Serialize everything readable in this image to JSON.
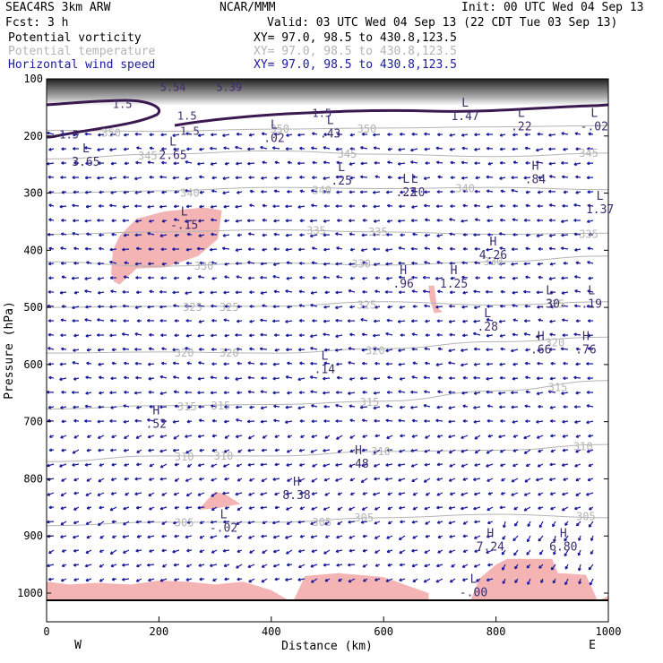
{
  "header": {
    "model": "SEAC4RS  3km ARW",
    "forecast": "Fcst:   3 h",
    "org": "NCAR/MMM",
    "init": "Init: 00 UTC Wed 04 Sep 13",
    "valid": "Valid: 03 UTC Wed 04 Sep 13 (22 CDT Tue 03 Sep 13)",
    "fields": [
      {
        "name": "Potential vorticity",
        "xy": "XY=  97.0, 98.5 to 430.8,123.5",
        "color": "#000000"
      },
      {
        "name": "Potential temperature",
        "xy": "XY=  97.0, 98.5 to 430.8,123.5",
        "color": "#b4b4b4"
      },
      {
        "name": "Horizontal wind speed",
        "xy": "XY=  97.0, 98.5 to 430.8,123.5",
        "color": "#1a1a9e"
      }
    ]
  },
  "colors": {
    "pv_fill": "#f4b4b4",
    "theta": "#b4b4b4",
    "label": "#3c2d6e",
    "wind": "#1a1a9e",
    "pv_contour": "#3a1850"
  },
  "chart_data": {
    "type": "cross-section",
    "xlabel": "Distance (km)",
    "ylabel": "Pressure (hPa)",
    "xlim": [
      0,
      1000
    ],
    "ylim": [
      1050,
      100
    ],
    "x_ticks": [
      "0",
      "200",
      "400",
      "600",
      "800",
      "1000"
    ],
    "y_ticks": [
      "100",
      "200",
      "300",
      "400",
      "500",
      "600",
      "700",
      "800",
      "900",
      "1000"
    ],
    "x_end_labels": {
      "left": "W",
      "right": "E"
    },
    "theta_isentropes": [
      {
        "label": "350",
        "points": [
          [
            0,
            190
          ],
          [
            200,
            192
          ],
          [
            400,
            188
          ],
          [
            600,
            186
          ],
          [
            800,
            184
          ],
          [
            1000,
            182
          ]
        ]
      },
      {
        "label": "345",
        "points": [
          [
            0,
            240
          ],
          [
            200,
            232
          ],
          [
            400,
            226
          ],
          [
            600,
            232
          ],
          [
            800,
            236
          ],
          [
            1000,
            230
          ]
        ]
      },
      {
        "label": "340",
        "points": [
          [
            0,
            300
          ],
          [
            200,
            296
          ],
          [
            400,
            290
          ],
          [
            600,
            292
          ],
          [
            800,
            290
          ],
          [
            1000,
            294
          ]
        ]
      },
      {
        "label": "335",
        "points": [
          [
            0,
            372
          ],
          [
            200,
            368
          ],
          [
            400,
            364
          ],
          [
            600,
            368
          ],
          [
            800,
            372
          ],
          [
            1000,
            370
          ]
        ]
      },
      {
        "label": "330",
        "points": [
          [
            0,
            420
          ],
          [
            200,
            428
          ],
          [
            400,
            422
          ],
          [
            600,
            426
          ],
          [
            800,
            420
          ],
          [
            1000,
            410
          ]
        ]
      },
      {
        "label": "325",
        "points": [
          [
            0,
            500
          ],
          [
            200,
            498
          ],
          [
            400,
            498
          ],
          [
            600,
            490
          ],
          [
            800,
            496
          ],
          [
            1000,
            490
          ]
        ]
      },
      {
        "label": "320",
        "points": [
          [
            0,
            580
          ],
          [
            200,
            578
          ],
          [
            400,
            580
          ],
          [
            600,
            572
          ],
          [
            800,
            560
          ],
          [
            1000,
            552
          ]
        ]
      },
      {
        "label": "315",
        "points": [
          [
            0,
            678
          ],
          [
            200,
            672
          ],
          [
            400,
            670
          ],
          [
            600,
            664
          ],
          [
            800,
            646
          ],
          [
            1000,
            628
          ]
        ]
      },
      {
        "label": "310",
        "points": [
          [
            0,
            770
          ],
          [
            200,
            760
          ],
          [
            400,
            760
          ],
          [
            600,
            752
          ],
          [
            800,
            750
          ],
          [
            1000,
            740
          ]
        ]
      },
      {
        "label": "305",
        "points": [
          [
            0,
            882
          ],
          [
            200,
            876
          ],
          [
            400,
            876
          ],
          [
            600,
            868
          ],
          [
            800,
            862
          ],
          [
            1000,
            868
          ]
        ]
      }
    ],
    "theta_labels": [
      {
        "text": "350",
        "x": 115,
        "p": 195
      },
      {
        "text": "350",
        "x": 415,
        "p": 188
      },
      {
        "text": "350",
        "x": 570,
        "p": 188
      },
      {
        "text": "345",
        "x": 180,
        "p": 235
      },
      {
        "text": "345",
        "x": 535,
        "p": 232
      },
      {
        "text": "345",
        "x": 965,
        "p": 230
      },
      {
        "text": "340",
        "x": 255,
        "p": 300
      },
      {
        "text": "340",
        "x": 490,
        "p": 295
      },
      {
        "text": "340",
        "x": 745,
        "p": 292
      },
      {
        "text": "335",
        "x": 480,
        "p": 366
      },
      {
        "text": "335",
        "x": 590,
        "p": 368
      },
      {
        "text": "335",
        "x": 965,
        "p": 372
      },
      {
        "text": "330",
        "x": 280,
        "p": 428
      },
      {
        "text": "330",
        "x": 560,
        "p": 424
      },
      {
        "text": "330",
        "x": 795,
        "p": 420
      },
      {
        "text": "325",
        "x": 260,
        "p": 500
      },
      {
        "text": "325",
        "x": 325,
        "p": 500
      },
      {
        "text": "325",
        "x": 570,
        "p": 496
      },
      {
        "text": "325",
        "x": 905,
        "p": 494
      },
      {
        "text": "320",
        "x": 245,
        "p": 580
      },
      {
        "text": "320",
        "x": 325,
        "p": 580
      },
      {
        "text": "320",
        "x": 585,
        "p": 576
      },
      {
        "text": "320",
        "x": 905,
        "p": 562
      },
      {
        "text": "315",
        "x": 250,
        "p": 674
      },
      {
        "text": "315",
        "x": 310,
        "p": 672
      },
      {
        "text": "315",
        "x": 575,
        "p": 666
      },
      {
        "text": "315",
        "x": 910,
        "p": 640
      },
      {
        "text": "310",
        "x": 245,
        "p": 762
      },
      {
        "text": "310",
        "x": 315,
        "p": 760
      },
      {
        "text": "310",
        "x": 595,
        "p": 752
      },
      {
        "text": "310",
        "x": 955,
        "p": 744
      },
      {
        "text": "305",
        "x": 245,
        "p": 877
      },
      {
        "text": "305",
        "x": 490,
        "p": 876
      },
      {
        "text": "305",
        "x": 565,
        "p": 868
      },
      {
        "text": "305",
        "x": 960,
        "p": 866
      }
    ],
    "pv_labels": [
      {
        "text": "5.54",
        "x": 225,
        "p": 115
      },
      {
        "text": "5.39",
        "x": 325,
        "p": 115
      },
      {
        "text": "1.5",
        "x": 135,
        "p": 145
      },
      {
        "text": "1.5",
        "x": 250,
        "p": 165
      },
      {
        "text": "1.5",
        "x": 490,
        "p": 160
      },
      {
        "text": "1.5",
        "x": 40,
        "p": 198
      },
      {
        "text": "1.5",
        "x": 255,
        "p": 192
      }
    ],
    "extrema": [
      {
        "kind": "L",
        "value": "3.65",
        "x": 70,
        "p": 232
      },
      {
        "kind": "L",
        "value": "2.65",
        "x": 225,
        "p": 220
      },
      {
        "kind": "L",
        "value": ".02",
        "x": 405,
        "p": 190
      },
      {
        "kind": "L",
        "value": ".43",
        "x": 505,
        "p": 182
      },
      {
        "kind": "L",
        "value": "1.47",
        "x": 745,
        "p": 152
      },
      {
        "kind": "L",
        "value": ".22",
        "x": 845,
        "p": 170
      },
      {
        "kind": "L",
        "value": "-.02",
        "x": 975,
        "p": 170
      },
      {
        "kind": "L",
        "value": ".25",
        "x": 525,
        "p": 265
      },
      {
        "kind": "L",
        "value": ".22",
        "x": 640,
        "p": 285
      },
      {
        "kind": "L",
        "value": ".10",
        "x": 655,
        "p": 285
      },
      {
        "kind": "H",
        "value": ".84",
        "x": 870,
        "p": 262
      },
      {
        "kind": "L",
        "value": "1.37",
        "x": 985,
        "p": 315
      },
      {
        "kind": "L",
        "value": "-.15",
        "x": 245,
        "p": 342
      },
      {
        "kind": "H",
        "value": "4.26",
        "x": 795,
        "p": 395
      },
      {
        "kind": "H",
        "value": ".96",
        "x": 635,
        "p": 445
      },
      {
        "kind": "H",
        "value": "1.25",
        "x": 725,
        "p": 445
      },
      {
        "kind": "L",
        "value": ".30",
        "x": 895,
        "p": 480
      },
      {
        "kind": "L",
        "value": ".19",
        "x": 970,
        "p": 480
      },
      {
        "kind": "L",
        "value": ".28",
        "x": 785,
        "p": 520
      },
      {
        "kind": "H",
        "value": ".66",
        "x": 880,
        "p": 560
      },
      {
        "kind": "H",
        "value": ".76",
        "x": 960,
        "p": 560
      },
      {
        "kind": "L",
        "value": ".14",
        "x": 495,
        "p": 595
      },
      {
        "kind": "H",
        "value": ".52",
        "x": 195,
        "p": 690
      },
      {
        "kind": "H",
        "value": ".48",
        "x": 555,
        "p": 760
      },
      {
        "kind": "H",
        "value": "8.38",
        "x": 445,
        "p": 815
      },
      {
        "kind": "L",
        "value": "-.02",
        "x": 315,
        "p": 872
      },
      {
        "kind": "H",
        "value": "7.24",
        "x": 790,
        "p": 905
      },
      {
        "kind": "H",
        "value": "6.80",
        "x": 920,
        "p": 905
      },
      {
        "kind": "L",
        "value": "-.00",
        "x": 760,
        "p": 985
      }
    ],
    "negative_pv_regions": [
      [
        [
          115,
          440
        ],
        [
          118,
          400
        ],
        [
          130,
          375
        ],
        [
          160,
          345
        ],
        [
          210,
          332
        ],
        [
          280,
          325
        ],
        [
          312,
          330
        ],
        [
          305,
          380
        ],
        [
          270,
          410
        ],
        [
          210,
          430
        ],
        [
          160,
          432
        ],
        [
          130,
          460
        ],
        [
          120,
          455
        ]
      ],
      [
        [
          680,
          462
        ],
        [
          690,
          462
        ],
        [
          695,
          500
        ],
        [
          705,
          508
        ],
        [
          690,
          510
        ],
        [
          682,
          485
        ]
      ],
      [
        [
          300,
          822
        ],
        [
          320,
          828
        ],
        [
          345,
          844
        ],
        [
          300,
          852
        ],
        [
          270,
          854
        ]
      ],
      [
        [
          0,
          980
        ],
        [
          40,
          985
        ],
        [
          90,
          982
        ],
        [
          150,
          985
        ],
        [
          200,
          978
        ],
        [
          250,
          980
        ],
        [
          300,
          985
        ],
        [
          350,
          980
        ],
        [
          400,
          995
        ],
        [
          430,
          1012
        ],
        [
          0,
          1012
        ]
      ],
      [
        [
          440,
          1012
        ],
        [
          460,
          970
        ],
        [
          520,
          965
        ],
        [
          600,
          972
        ],
        [
          680,
          1000
        ],
        [
          680,
          1012
        ]
      ],
      [
        [
          755,
          1012
        ],
        [
          770,
          975
        ],
        [
          800,
          950
        ],
        [
          820,
          940
        ],
        [
          900,
          940
        ],
        [
          910,
          965
        ],
        [
          960,
          968
        ],
        [
          975,
          1000
        ],
        [
          980,
          1012
        ]
      ],
      [
        [
          985,
          1012
        ],
        [
          1000,
          1005
        ],
        [
          1000,
          1012
        ]
      ]
    ]
  }
}
